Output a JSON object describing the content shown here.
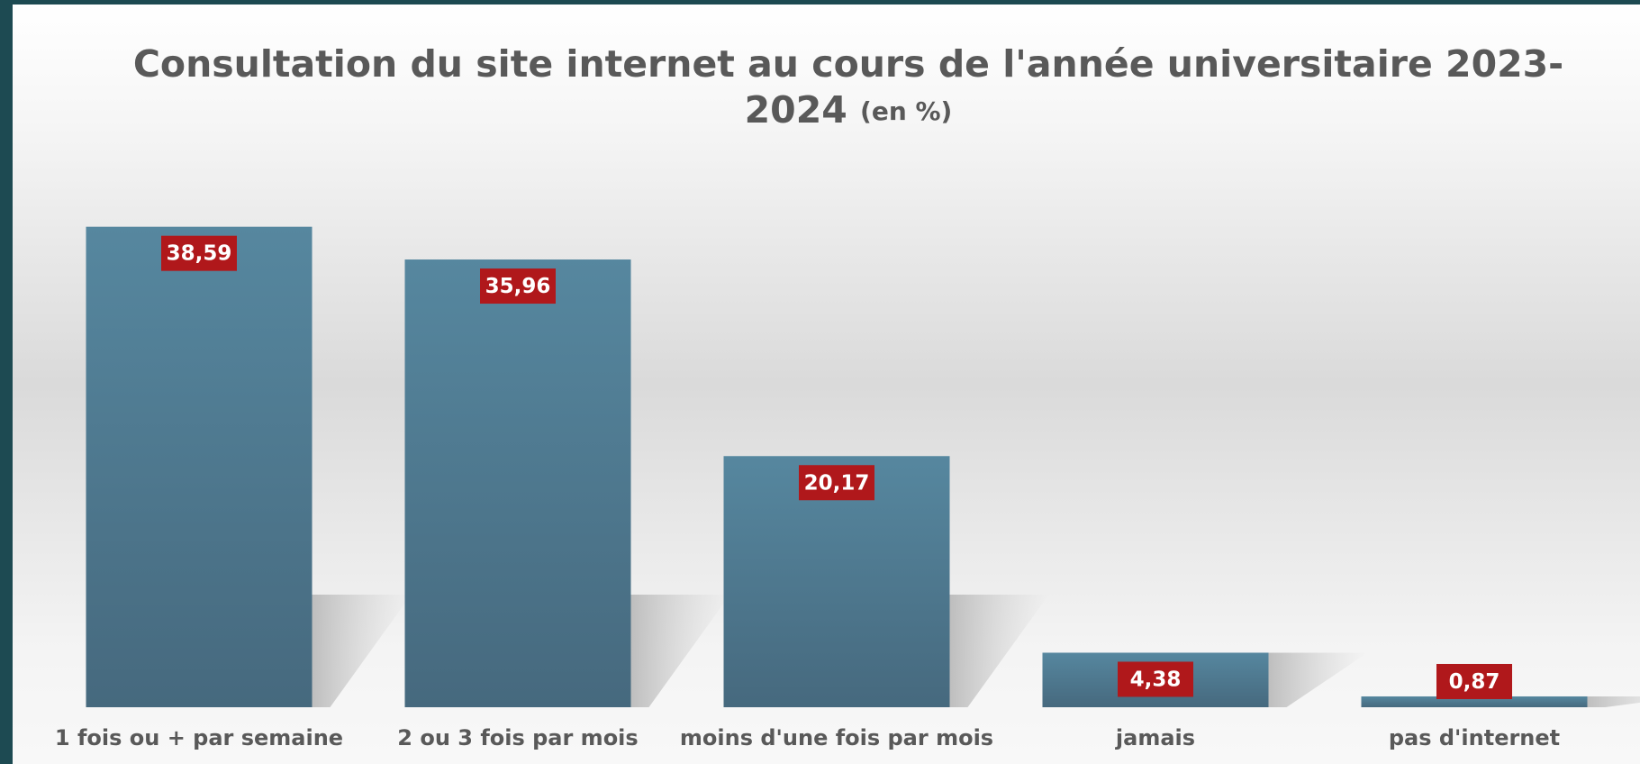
{
  "chart_data": {
    "type": "bar",
    "title": "Consultation du site internet au cours de l'année universitaire 2023-2024",
    "title_unit": "(en %)",
    "categories": [
      "1 fois ou + par semaine",
      "2 ou 3 fois par mois",
      "moins d'une fois par mois",
      "jamais",
      "pas d'internet"
    ],
    "values": [
      38.59,
      35.96,
      20.17,
      4.38,
      0.87
    ],
    "value_labels": [
      "38,59",
      "35,96",
      "20,17",
      "4,38",
      "0,87"
    ],
    "color": "#52819a",
    "label_color": "#b0181b"
  }
}
